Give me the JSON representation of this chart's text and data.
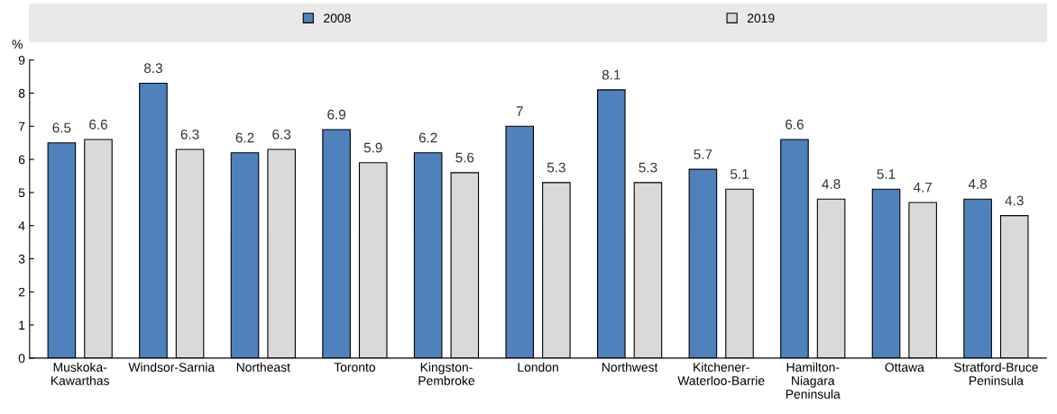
{
  "chart_data": {
    "type": "bar",
    "ylabel": "%",
    "categories": [
      "Muskoka-\nKawarthas",
      "Windsor-Sarnia",
      "Northeast",
      "Toronto",
      "Kingston-\nPembroke",
      "London",
      "Northwest",
      "Kitchener-\nWaterloo-Barrie",
      "Hamilton-\nNiagara\nPeninsula",
      "Ottawa",
      "Stratford-Bruce\nPeninsula"
    ],
    "series": [
      {
        "name": "2008",
        "color": "#4f81bd",
        "values": [
          6.5,
          8.3,
          6.2,
          6.9,
          6.2,
          7,
          8.1,
          5.7,
          6.6,
          5.1,
          4.8
        ]
      },
      {
        "name": "2019",
        "color": "#d9d9d9",
        "values": [
          6.6,
          6.3,
          6.3,
          5.9,
          5.6,
          5.3,
          5.3,
          5.1,
          4.8,
          4.7,
          4.3
        ]
      }
    ],
    "ylim": [
      0,
      9
    ],
    "yticks": [
      0,
      1,
      2,
      3,
      4,
      5,
      6,
      7,
      8,
      9
    ],
    "data_labels": true,
    "grid": false,
    "legend": "top"
  }
}
